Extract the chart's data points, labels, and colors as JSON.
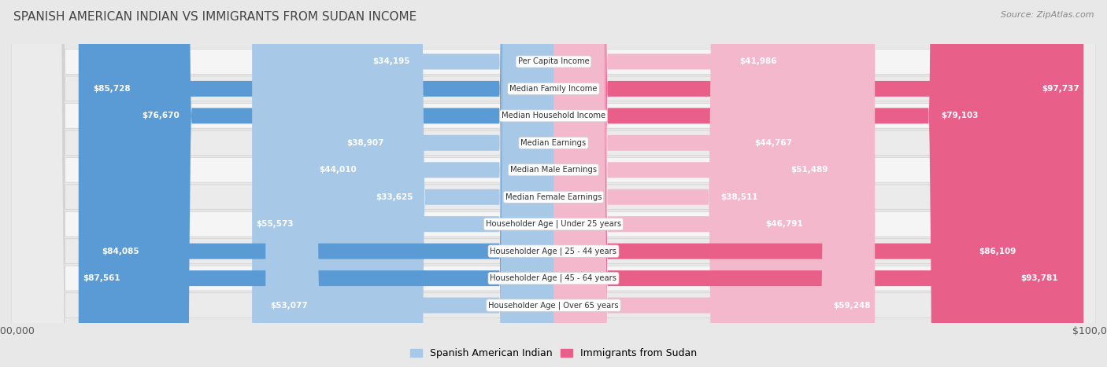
{
  "title": "SPANISH AMERICAN INDIAN VS IMMIGRANTS FROM SUDAN INCOME",
  "source": "Source: ZipAtlas.com",
  "categories": [
    "Per Capita Income",
    "Median Family Income",
    "Median Household Income",
    "Median Earnings",
    "Median Male Earnings",
    "Median Female Earnings",
    "Householder Age | Under 25 years",
    "Householder Age | 25 - 44 years",
    "Householder Age | 45 - 64 years",
    "Householder Age | Over 65 years"
  ],
  "left_values": [
    34195,
    85728,
    76670,
    38907,
    44010,
    33625,
    55573,
    84085,
    87561,
    53077
  ],
  "right_values": [
    41986,
    97737,
    79103,
    44767,
    51489,
    38511,
    46791,
    86109,
    93781,
    59248
  ],
  "left_labels": [
    "$34,195",
    "$85,728",
    "$76,670",
    "$38,907",
    "$44,010",
    "$33,625",
    "$55,573",
    "$84,085",
    "$87,561",
    "$53,077"
  ],
  "right_labels": [
    "$41,986",
    "$97,737",
    "$79,103",
    "$44,767",
    "$51,489",
    "$38,511",
    "$46,791",
    "$86,109",
    "$93,781",
    "$59,248"
  ],
  "max_value": 100000,
  "left_color_light": "#a8c8e8",
  "left_color_dark": "#5b9bd5",
  "right_color_light": "#f4b8cc",
  "right_color_dark": "#e8608a",
  "bg_color": "#e8e8e8",
  "row_bg_odd": "#f5f5f5",
  "row_bg_even": "#ebebeb",
  "label_white": "#ffffff",
  "label_dark": "#555555",
  "legend_left": "Spanish American Indian",
  "legend_right": "Immigrants from Sudan",
  "x_tick_left": "$100,000",
  "x_tick_right": "$100,000",
  "inside_threshold": 20000
}
